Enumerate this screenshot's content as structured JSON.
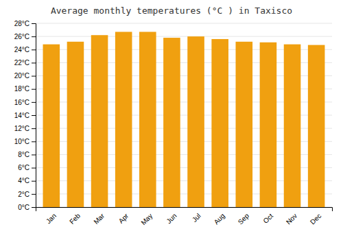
{
  "chart_data": {
    "type": "bar",
    "title": "Average monthly temperatures (°C ) in Taxisco",
    "categories": [
      "Jan",
      "Feb",
      "Mar",
      "Apr",
      "May",
      "Jun",
      "Jul",
      "Aug",
      "Sep",
      "Oct",
      "Nov",
      "Dec"
    ],
    "values": [
      24.8,
      25.2,
      26.2,
      26.7,
      26.7,
      25.8,
      26.0,
      25.6,
      25.2,
      25.1,
      24.8,
      24.7
    ],
    "color": "#F0A010",
    "ylim": [
      0,
      28
    ],
    "yticks": [
      {
        "value": 0,
        "label": "0°C"
      },
      {
        "value": 2,
        "label": "2°C"
      },
      {
        "value": 4,
        "label": "4°C"
      },
      {
        "value": 6,
        "label": "6°C"
      },
      {
        "value": 8,
        "label": "8°C"
      },
      {
        "value": 10,
        "label": "10°C"
      },
      {
        "value": 12,
        "label": "12°C"
      },
      {
        "value": 14,
        "label": "14°C"
      },
      {
        "value": 16,
        "label": "16°C"
      },
      {
        "value": 18,
        "label": "18°C"
      },
      {
        "value": 20,
        "label": "20°C"
      },
      {
        "value": 22,
        "label": "22°C"
      },
      {
        "value": 24,
        "label": "24°C"
      },
      {
        "value": 26,
        "label": "26°C"
      },
      {
        "value": 28,
        "label": "28°C"
      }
    ],
    "grid": true
  }
}
